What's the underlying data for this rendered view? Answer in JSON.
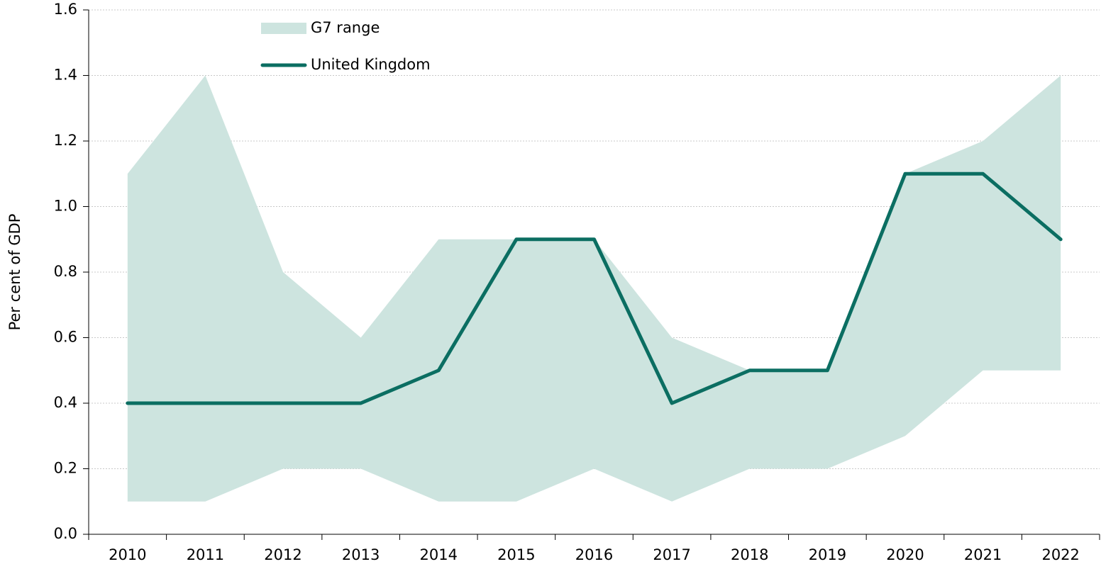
{
  "chart_data": {
    "type": "line",
    "y_label": "Per cent of GDP",
    "categories": [
      "2010",
      "2011",
      "2012",
      "2013",
      "2014",
      "2015",
      "2016",
      "2017",
      "2018",
      "2019",
      "2020",
      "2021",
      "2022"
    ],
    "series": [
      {
        "name": "G7 range",
        "color": "#cde4df",
        "lower": [
          0.1,
          0.1,
          0.2,
          0.2,
          0.1,
          0.1,
          0.2,
          0.1,
          0.2,
          0.2,
          0.3,
          0.5,
          0.5
        ],
        "upper": [
          1.1,
          1.4,
          0.8,
          0.6,
          0.9,
          0.9,
          0.9,
          0.6,
          0.5,
          0.5,
          1.1,
          1.2,
          1.4
        ]
      },
      {
        "name": "United Kingdom",
        "color": "#0b6e62",
        "values": [
          0.4,
          0.4,
          0.4,
          0.4,
          0.5,
          0.9,
          0.9,
          0.4,
          0.5,
          0.5,
          1.1,
          1.1,
          0.9
        ]
      }
    ],
    "ylim": [
      0,
      1.6
    ],
    "yticks": [
      {
        "value": 0,
        "label": "0.0"
      },
      0.2,
      0.4,
      0.6,
      0.8,
      {
        "value": 1,
        "label": "1.0"
      },
      1.2,
      1.4,
      1.6
    ],
    "grid": true
  }
}
